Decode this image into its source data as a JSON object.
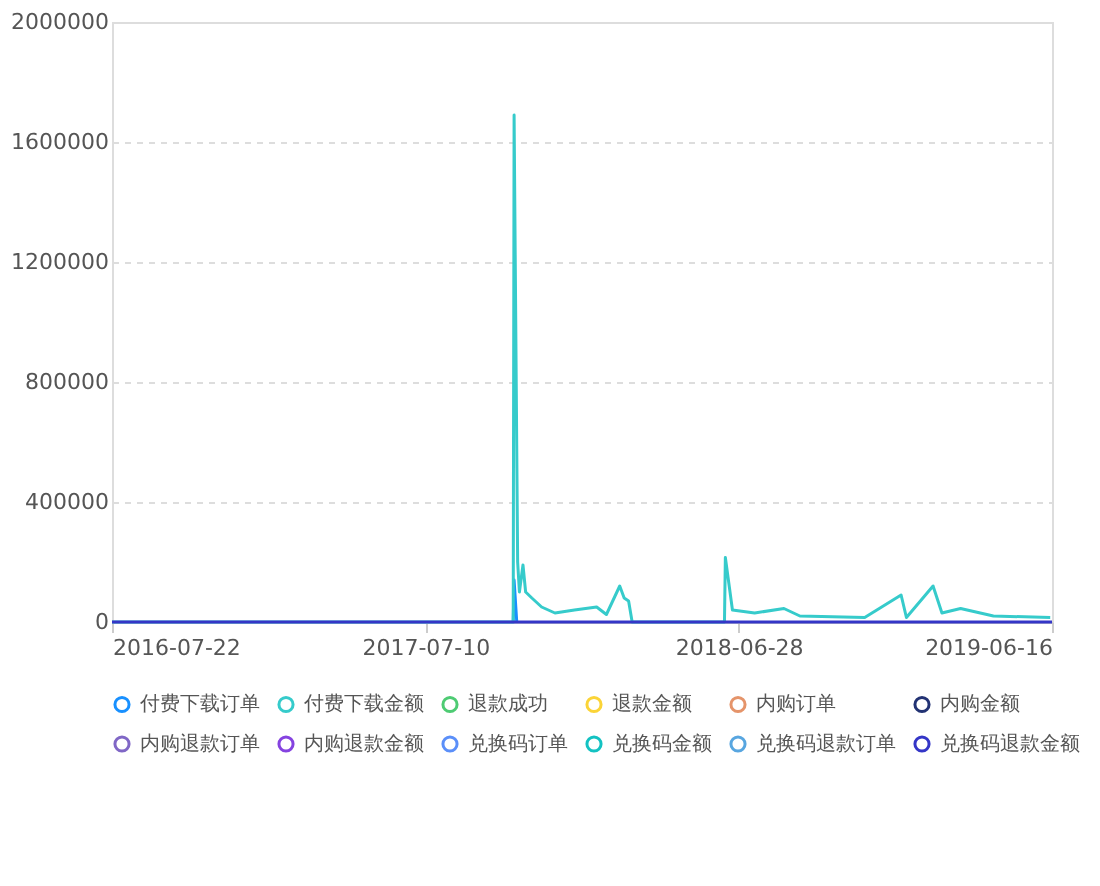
{
  "chart_data": {
    "type": "line",
    "xlim": [
      "2016-07-22",
      "2019-06-16"
    ],
    "xticks": [
      "2016-07-22",
      "2017-07-10",
      "2018-06-28",
      "2019-06-16"
    ],
    "ylim": [
      0,
      2000000
    ],
    "yticks": [
      0,
      400000,
      800000,
      1200000,
      1600000,
      2000000
    ],
    "grid": "y",
    "legend": "bottom",
    "marker": "none",
    "line_style": "solid",
    "series": [
      {
        "name": "付费下载订单",
        "color": "#1890ff",
        "x": [
          "2017-10-17",
          "2017-10-18",
          "2017-10-21"
        ],
        "values": [
          0,
          140000,
          0
        ]
      },
      {
        "name": "付费下载金额",
        "color": "#36cbcb",
        "x": [
          "2016-07-22",
          "2017-10-17",
          "2017-10-18",
          "2017-10-22",
          "2017-10-24",
          "2017-10-28",
          "2017-10-31",
          "2017-11-07",
          "2017-11-18",
          "2017-12-03",
          "2017-12-25",
          "2018-01-19",
          "2018-01-30",
          "2018-02-14",
          "2018-02-19",
          "2018-02-24",
          "2018-02-28",
          "2018-03-01",
          "2018-06-12",
          "2018-06-13",
          "2018-06-21",
          "2018-07-16",
          "2018-08-18",
          "2018-09-05",
          "2018-11-17",
          "2018-12-28",
          "2019-01-03",
          "2019-02-02",
          "2019-02-12",
          "2019-03-05",
          "2019-04-11",
          "2019-06-14"
        ],
        "values": [
          0,
          0,
          1690000,
          200000,
          100000,
          190000,
          100000,
          80000,
          50000,
          30000,
          40000,
          50000,
          25000,
          120000,
          80000,
          70000,
          0,
          0,
          0,
          215000,
          40000,
          30000,
          45000,
          20000,
          15000,
          90000,
          15000,
          120000,
          30000,
          45000,
          20000,
          15000
        ]
      },
      {
        "name": "退款成功",
        "color": "#4ecb73"
      },
      {
        "name": "退款金额",
        "color": "#fbd437"
      },
      {
        "name": "内购订单",
        "color": "#e5946a"
      },
      {
        "name": "内购金额",
        "color": "#223273"
      },
      {
        "name": "内购退款订单",
        "color": "#8067c6"
      },
      {
        "name": "内购退款金额",
        "color": "#8543e0"
      },
      {
        "name": "兑换码订单",
        "color": "#5b8ff9"
      },
      {
        "name": "兑换码金额",
        "color": "#13c2c2"
      },
      {
        "name": "兑换码退款订单",
        "color": "#58a6e0"
      },
      {
        "name": "兑换码退款金额",
        "color": "#3436c7",
        "x": [
          "2016-07-22",
          "2019-06-16"
        ],
        "values": [
          0,
          0
        ]
      }
    ]
  }
}
